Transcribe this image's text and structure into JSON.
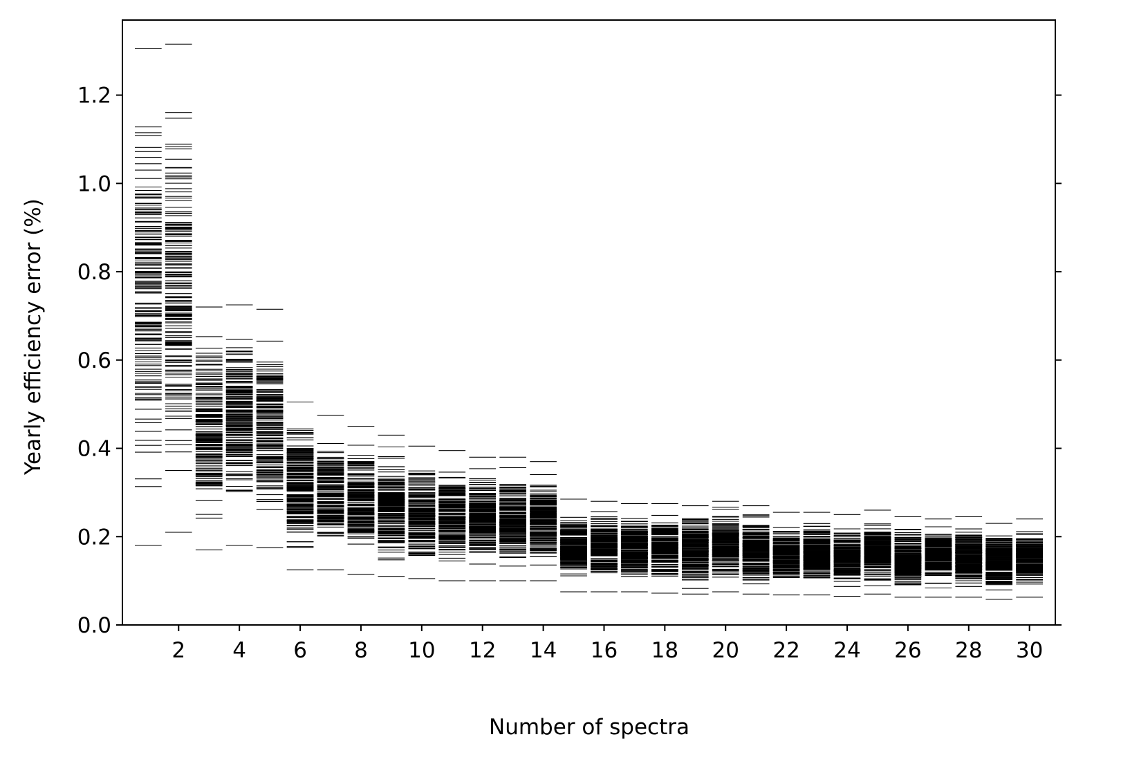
{
  "chart_data": {
    "type": "scatter",
    "marker": "horizontal-dash",
    "title": "",
    "xlabel": "Number of spectra",
    "ylabel": "Yearly efficiency error (%)",
    "xlim": [
      0.15,
      30.85
    ],
    "ylim": [
      0.0,
      1.37
    ],
    "xticks": [
      2,
      4,
      6,
      8,
      10,
      12,
      14,
      16,
      18,
      20,
      22,
      24,
      26,
      28,
      30
    ],
    "xtick_labels": [
      "2",
      "4",
      "6",
      "8",
      "10",
      "12",
      "14",
      "16",
      "18",
      "20",
      "22",
      "24",
      "26",
      "28",
      "30"
    ],
    "yticks": [
      0.0,
      0.2,
      0.4,
      0.6,
      0.8,
      1.0,
      1.2
    ],
    "ytick_labels": [
      "0.0",
      "0.2",
      "0.4",
      "0.6",
      "0.8",
      "1.0",
      "1.2"
    ],
    "grid": false,
    "mark_color": "#000000",
    "summary": {
      "note": "Each column shows many individual error values (dashes) per number of spectra; min and max values read from the plot.",
      "x": [
        1,
        2,
        3,
        4,
        5,
        6,
        7,
        8,
        9,
        10,
        11,
        12,
        13,
        14,
        15,
        16,
        17,
        18,
        19,
        20,
        21,
        22,
        23,
        24,
        25,
        26,
        27,
        28,
        29,
        30
      ],
      "min": [
        0.18,
        0.21,
        0.17,
        0.18,
        0.175,
        0.125,
        0.125,
        0.115,
        0.11,
        0.105,
        0.1,
        0.1,
        0.1,
        0.1,
        0.075,
        0.075,
        0.075,
        0.072,
        0.07,
        0.075,
        0.07,
        0.068,
        0.068,
        0.065,
        0.07,
        0.063,
        0.063,
        0.063,
        0.058,
        0.063
      ],
      "max": [
        1.305,
        1.315,
        0.72,
        0.725,
        0.715,
        0.505,
        0.475,
        0.45,
        0.43,
        0.405,
        0.395,
        0.38,
        0.38,
        0.37,
        0.285,
        0.28,
        0.275,
        0.275,
        0.27,
        0.28,
        0.27,
        0.255,
        0.255,
        0.25,
        0.26,
        0.245,
        0.24,
        0.245,
        0.23,
        0.24
      ]
    }
  }
}
